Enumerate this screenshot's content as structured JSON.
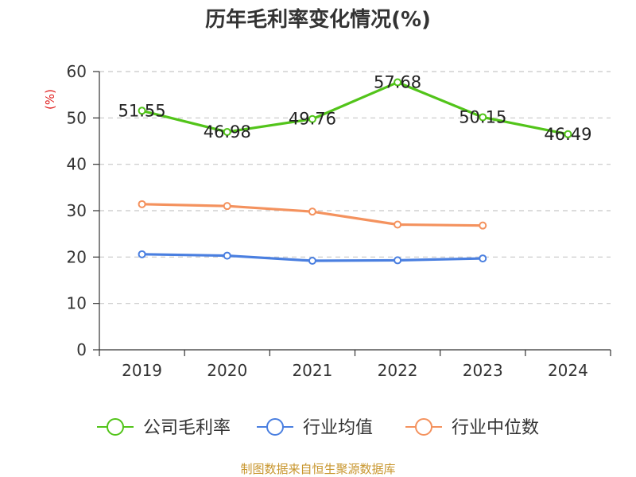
{
  "chart_data": {
    "type": "line",
    "title": "历年毛利率变化情况(%)",
    "ylabel": "(%)",
    "xlabel": "",
    "categories": [
      "2019",
      "2020",
      "2021",
      "2022",
      "2023",
      "2024"
    ],
    "ylim": [
      0,
      60
    ],
    "yticks": [
      0,
      10,
      20,
      30,
      40,
      50,
      60
    ],
    "grid": true,
    "legend_position": "bottom",
    "series": [
      {
        "name": "公司毛利率",
        "color": "#52c41a",
        "values": [
          51.55,
          46.98,
          49.76,
          57.68,
          50.15,
          46.49
        ],
        "labels": [
          "51.55",
          "46.98",
          "49.76",
          "57.68",
          "50.15",
          "46.49"
        ]
      },
      {
        "name": "行业均值",
        "color": "#4a7fe0",
        "values": [
          20.6,
          20.3,
          19.2,
          19.3,
          19.7,
          null
        ]
      },
      {
        "name": "行业中位数",
        "color": "#f4925e",
        "values": [
          31.4,
          31.0,
          29.8,
          27.0,
          26.8,
          null
        ]
      }
    ]
  },
  "footer": {
    "source": "制图数据来自恒生聚源数据库"
  }
}
